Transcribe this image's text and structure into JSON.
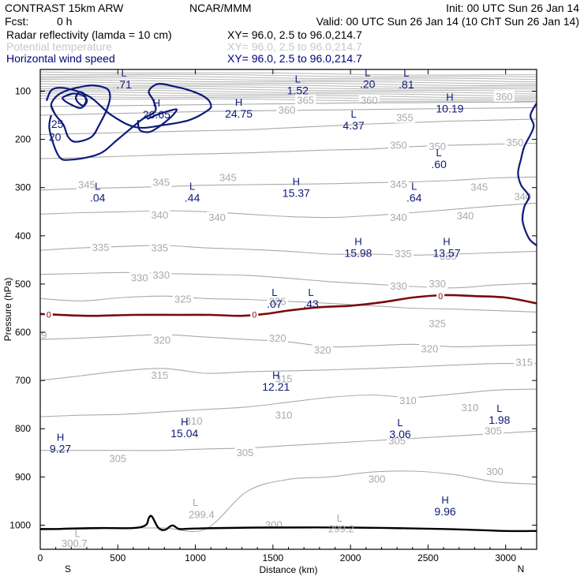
{
  "header": {
    "model": "CONTRAST 15km ARW",
    "org": "NCAR/MMM",
    "init": "Init: 00 UTC Sun 26 Jan 14",
    "fcst_label": "Fcst:",
    "fcst_value": "0 h",
    "valid": "Valid: 00 UTC Sun 26 Jan 14 (10 ChT Sun 26 Jan 14)",
    "legend": [
      {
        "name": "Radar reflectivity (lamda = 10 cm)",
        "xy": "XY= 96.0, 2.5 to 96.0,214.7",
        "color": "#000000"
      },
      {
        "name": "Potential temperature",
        "xy": "XY= 96.0, 2.5 to 96.0,214.7",
        "color": "#c8c8c8"
      },
      {
        "name": "Horizontal wind speed",
        "xy": "XY= 96.0, 2.5 to 96.0,214.7",
        "color": "#00007a"
      }
    ]
  },
  "colors": {
    "theta": "#a9a9a9",
    "wind": "#0c1a7a",
    "zero_line": "#7a0a0a",
    "terrain": "#000000"
  },
  "chart_data": {
    "type": "cross-section",
    "xlabel": "Distance (km)",
    "ylabel": "Pressure (hPa)",
    "xlim": [
      0,
      3200
    ],
    "ylim": [
      1050,
      55
    ],
    "x_ticks": [
      0,
      500,
      1000,
      1500,
      2000,
      2500,
      3000
    ],
    "y_ticks": [
      100,
      200,
      300,
      400,
      500,
      600,
      700,
      800,
      900,
      1000
    ],
    "left_end": "S",
    "right_end": "N",
    "theta_levels": [
      {
        "label": "300",
        "p": [
          1010,
          1008,
          1006,
          1006,
          1008,
          930,
          905,
          900,
          890,
          888,
          895,
          910,
          915
        ],
        "label_pts": [
          [
            1505,
            1000
          ],
          [
            2170,
            905
          ],
          [
            2930,
            890
          ]
        ]
      },
      {
        "label": "305",
        "p": [
          845,
          845,
          845,
          845,
          842,
          840,
          835,
          830,
          825,
          820,
          815,
          810,
          805
        ],
        "label_pts": [
          [
            500,
            863
          ],
          [
            1320,
            850
          ],
          [
            2300,
            826
          ],
          [
            2920,
            805
          ]
        ]
      },
      {
        "label": "310",
        "p": [
          775,
          772,
          770,
          765,
          760,
          755,
          745,
          735,
          730,
          735,
          728,
          720,
          718
        ],
        "label_pts": [
          [
            990,
            785
          ],
          [
            1570,
            773
          ],
          [
            2370,
            742
          ],
          [
            2770,
            757
          ]
        ]
      },
      {
        "label": "315",
        "p": [
          700,
          690,
          680,
          675,
          685,
          682,
          680,
          678,
          675,
          672,
          668,
          665,
          665
        ],
        "label_pts": [
          [
            770,
            690
          ],
          [
            1570,
            697
          ],
          [
            3120,
            663
          ]
        ]
      },
      {
        "label": "320",
        "p": [
          615,
          612,
          608,
          605,
          610,
          615,
          620,
          630,
          628,
          625,
          630,
          628,
          626
        ],
        "label_pts": [
          [
            785,
            617
          ],
          [
            1530,
            613
          ],
          [
            1820,
            638
          ],
          [
            2510,
            635
          ]
        ]
      },
      {
        "label": "325",
        "p": [
          530,
          535,
          528,
          525,
          530,
          532,
          536,
          540,
          545,
          550,
          552,
          555,
          558
        ],
        "label_pts": [
          [
            920,
            532
          ],
          [
            1530,
            537
          ],
          [
            2560,
            583
          ]
        ]
      },
      {
        "label": "330",
        "p": [
          480,
          478,
          476,
          478,
          480,
          482,
          488,
          495,
          500,
          505,
          508,
          502,
          498
        ],
        "label_pts": [
          [
            640,
            488
          ],
          [
            780,
            482
          ],
          [
            2310,
            505
          ],
          [
            2560,
            500
          ]
        ]
      },
      {
        "label": "335",
        "p": [
          430,
          425,
          422,
          420,
          425,
          428,
          432,
          438,
          438,
          440,
          438,
          435,
          432
        ],
        "label_pts": [
          [
            390,
            425
          ],
          [
            770,
            426
          ],
          [
            2340,
            438
          ],
          [
            2630,
            443
          ]
        ]
      },
      {
        "label": "340",
        "p": [
          355,
          352,
          350,
          348,
          350,
          355,
          360,
          362,
          358,
          352,
          345,
          338,
          332
        ],
        "label_pts": [
          [
            770,
            358
          ],
          [
            1140,
            363
          ],
          [
            2310,
            363
          ],
          [
            2740,
            359
          ],
          [
            3110,
            319
          ]
        ]
      },
      {
        "label": "345",
        "p": [
          305,
          302,
          300,
          298,
          295,
          294,
          293,
          292,
          290,
          288,
          285,
          280,
          278
        ],
        "label_pts": [
          [
            300,
            295
          ],
          [
            780,
            290
          ],
          [
            1210,
            280
          ],
          [
            2310,
            294
          ],
          [
            2830,
            300
          ]
        ]
      },
      {
        "label": "350",
        "p": [
          240,
          238,
          235,
          232,
          230,
          228,
          225,
          222,
          220,
          215,
          212,
          210,
          208
        ],
        "label_pts": [
          [
            2310,
            213
          ],
          [
            2560,
            215
          ],
          [
            3060,
            207
          ]
        ]
      },
      {
        "label": "355",
        "p": [
          190,
          188,
          186,
          184,
          182,
          180,
          176,
          172,
          168,
          165,
          162,
          160,
          158
        ],
        "label_pts": [
          [
            2350,
            156
          ]
        ]
      },
      {
        "label": "360",
        "p": [
          150,
          148,
          146,
          144,
          142,
          141,
          140,
          139,
          138,
          137,
          136,
          135,
          134
        ],
        "label_pts": [
          [
            1590,
            140
          ],
          [
            2120,
            120
          ],
          [
            2990,
            112
          ]
        ]
      },
      {
        "label": "365",
        "p": [
          132,
          131,
          130,
          129,
          128,
          127,
          126,
          125,
          124,
          124,
          123,
          123,
          122
        ],
        "label_pts": [
          [
            1710,
            120
          ]
        ]
      }
    ],
    "stratosphere_lines": 14,
    "zero_contour": {
      "label": "0",
      "x": [
        0,
        300,
        600,
        900,
        1100,
        1300,
        1450,
        1600,
        1800,
        2000,
        2200,
        2400,
        2600,
        2800,
        3000,
        3200
      ],
      "p": [
        562,
        566,
        564,
        564,
        564,
        566,
        562,
        555,
        548,
        545,
        538,
        528,
        523,
        525,
        528,
        540
      ],
      "label_pts": [
        [
          55,
          563
        ],
        [
          1380,
          563
        ],
        [
          2580,
          525
        ]
      ]
    },
    "wind_contours": [
      {
        "label": "20",
        "x": [
          70,
          60,
          120,
          200,
          380,
          500,
          650,
          740,
          730,
          700,
          760,
          860,
          960,
          1060,
          1100,
          1080,
          960,
          800,
          620,
          460,
          320,
          180,
          80,
          40
        ],
        "p": [
          150,
          180,
          235,
          242,
          230,
          200,
          160,
          142,
          120,
          100,
          85,
          90,
          98,
          112,
          128,
          140,
          160,
          170,
          175,
          150,
          112,
          95,
          96,
          120
        ],
        "closed": false
      },
      {
        "label": "25",
        "x": [
          70,
          100,
          150,
          180,
          230,
          330,
          380,
          420,
          440,
          450,
          430,
          340,
          250,
          160,
          100
        ],
        "p": [
          130,
          150,
          170,
          195,
          205,
          195,
          170,
          145,
          128,
          110,
          95,
          88,
          92,
          100,
          112
        ],
        "closed": true
      },
      {
        "label": "",
        "x": [
          150,
          210,
          280,
          300,
          260,
          200,
          150
        ],
        "p": [
          112,
          105,
          110,
          122,
          135,
          128,
          118
        ],
        "closed": true
      },
      {
        "label": "",
        "x": [
          230,
          250,
          280,
          295,
          275,
          240
        ],
        "p": [
          112,
          102,
          105,
          120,
          130,
          122
        ],
        "closed": true
      },
      {
        "label": "",
        "x": [
          630,
          640,
          700,
          760,
          820,
          860,
          880,
          840,
          760,
          690
        ],
        "p": [
          160,
          180,
          185,
          175,
          160,
          148,
          138,
          140,
          148,
          158
        ],
        "closed": false
      },
      {
        "label": "",
        "x": [
          3200,
          3160,
          3180,
          3120,
          3100,
          3080,
          3100,
          3150,
          3120,
          3110,
          3150,
          3200
        ],
        "p": [
          125,
          150,
          175,
          215,
          240,
          270,
          295,
          318,
          340,
          370,
          405,
          420
        ],
        "closed": false
      }
    ],
    "terrain": {
      "x": [
        0,
        100,
        200,
        400,
        600,
        680,
        700,
        720,
        760,
        800,
        840,
        860,
        900,
        1000,
        1400,
        2000,
        2600,
        3000,
        3200
      ],
      "p": [
        1008,
        1008,
        1007,
        1006,
        1006,
        1000,
        985,
        982,
        1005,
        1010,
        1002,
        1001,
        1008,
        1007,
        1005,
        1005,
        1008,
        1012,
        1012
      ]
    },
    "labels": [
      {
        "kind": "L",
        "value": ".71",
        "x": 540,
        "p": 83
      },
      {
        "kind": "L",
        "value": "1.52",
        "x": 1660,
        "p": 95
      },
      {
        "kind": "L",
        "value": ".20",
        "x": 2110,
        "p": 82
      },
      {
        "kind": "L",
        "value": ".81",
        "x": 2360,
        "p": 83
      },
      {
        "kind": "H",
        "value": "26.65",
        "x": 750,
        "p": 145
      },
      {
        "kind": "H",
        "value": "24.75",
        "x": 1280,
        "p": 143
      },
      {
        "kind": "H",
        "value": "10.19",
        "x": 2640,
        "p": 133
      },
      {
        "kind": "L",
        "value": "4.37",
        "x": 2020,
        "p": 168
      },
      {
        "kind": "L",
        "value": ".60",
        "x": 2570,
        "p": 248
      },
      {
        "kind": "H",
        "value": "15.37",
        "x": 1650,
        "p": 308
      },
      {
        "kind": "L",
        "value": ".04",
        "x": 370,
        "p": 318
      },
      {
        "kind": "L",
        "value": ".44",
        "x": 980,
        "p": 318
      },
      {
        "kind": "L",
        "value": ".64",
        "x": 2410,
        "p": 318
      },
      {
        "kind": "H",
        "value": "15.98",
        "x": 2050,
        "p": 432
      },
      {
        "kind": "H",
        "value": "13.57",
        "x": 2620,
        "p": 432
      },
      {
        "kind": "L",
        "value": ".07",
        "x": 1510,
        "p": 538
      },
      {
        "kind": "L",
        "value": ".43",
        "x": 1745,
        "p": 538
      },
      {
        "kind": "H",
        "value": "12.21",
        "x": 1520,
        "p": 710
      },
      {
        "kind": "L",
        "value": "1.98",
        "x": 2960,
        "p": 778
      },
      {
        "kind": "H",
        "value": "15.04",
        "x": 930,
        "p": 806
      },
      {
        "kind": "L",
        "value": "3.06",
        "x": 2320,
        "p": 808
      },
      {
        "kind": "H",
        "value": "9.27",
        "x": 130,
        "p": 838
      },
      {
        "kind": "H",
        "value": "9.96",
        "x": 2610,
        "p": 968
      }
    ],
    "small_labels": [
      {
        "text": "L",
        "x": 1000,
        "p": 960
      },
      {
        "text": "299.4",
        "x": 1040,
        "p": 985
      },
      {
        "text": "L",
        "x": 1930,
        "p": 993
      },
      {
        "text": "299.2",
        "x": 1940,
        "p": 1015
      },
      {
        "text": "L",
        "x": 240,
        "p": 1025
      },
      {
        "text": "300.7",
        "x": 220,
        "p": 1045
      },
      {
        "text": "9",
        "x": 25,
        "p": 613
      }
    ]
  }
}
